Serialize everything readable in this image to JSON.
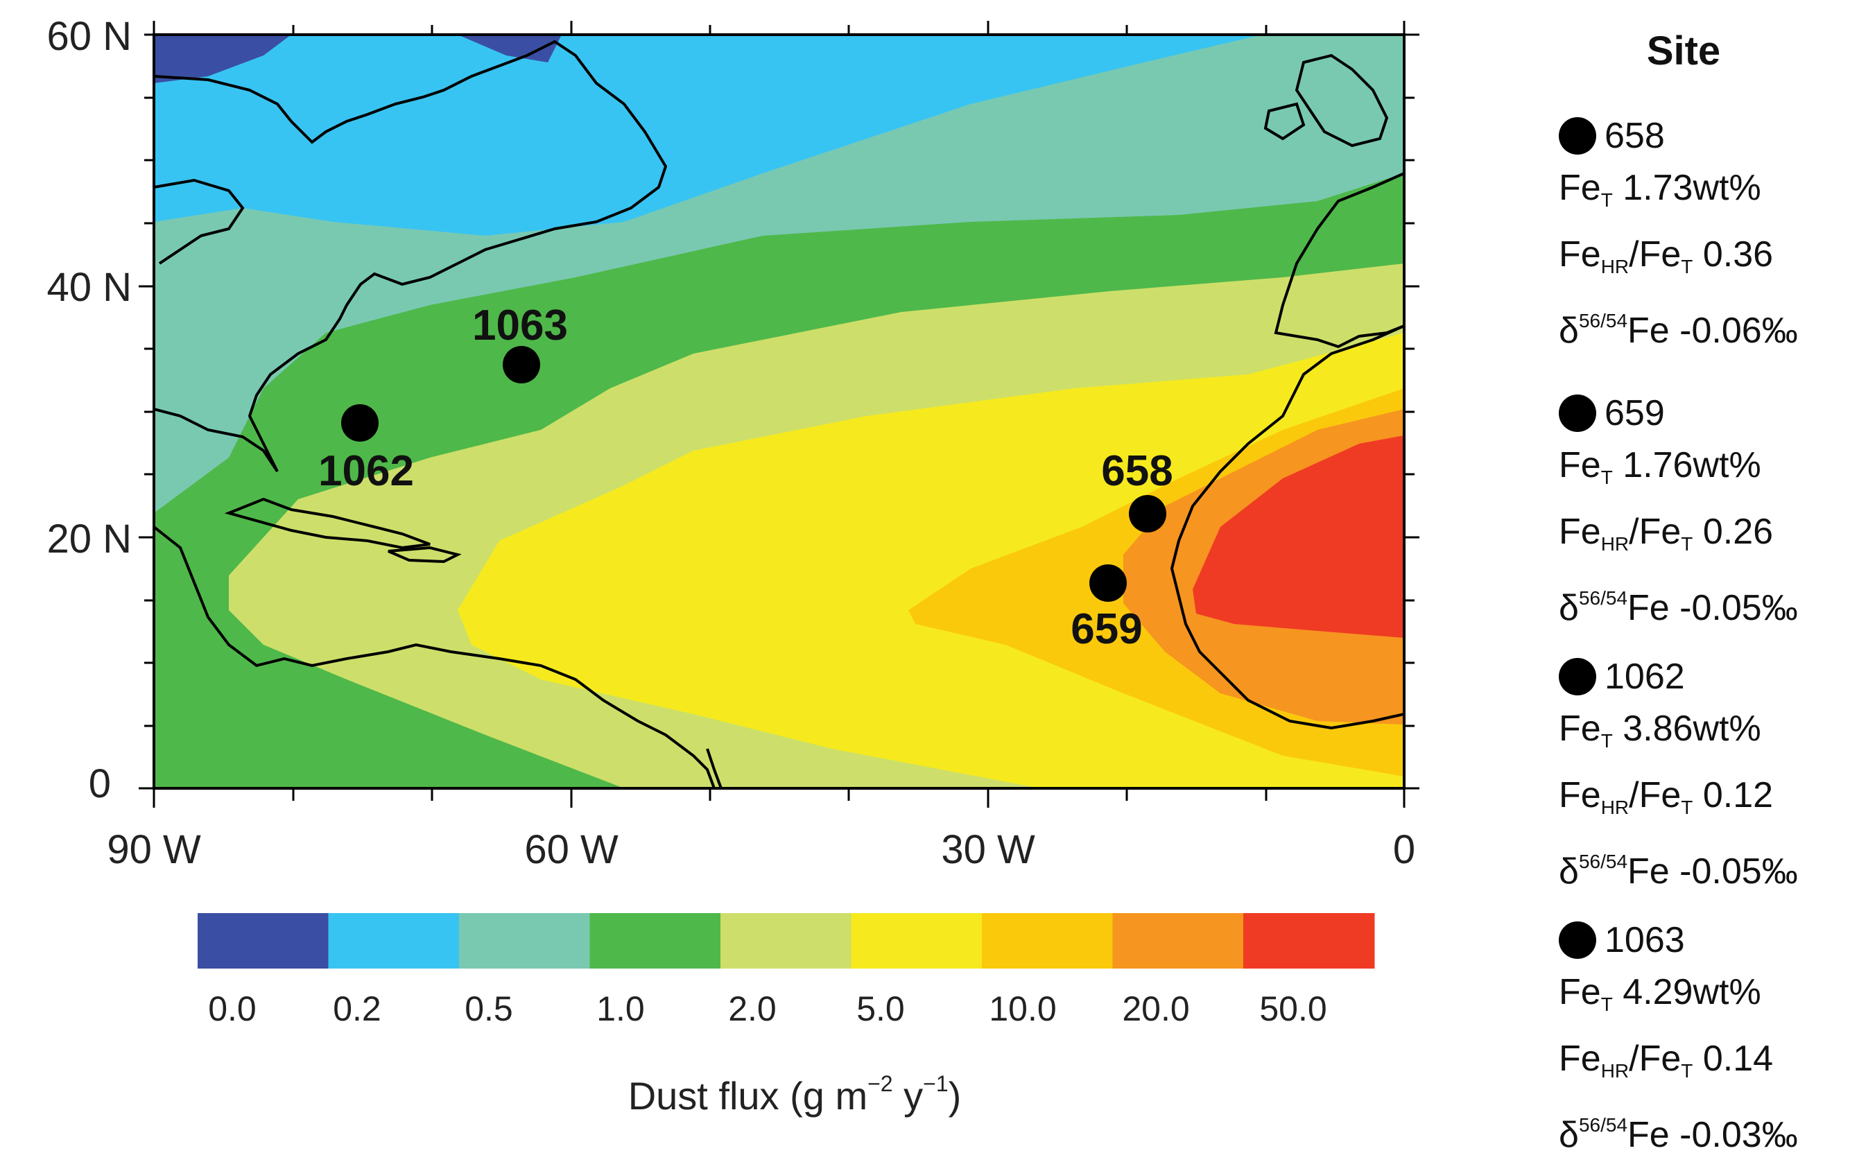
{
  "map": {
    "y_axis_labels": [
      "60 N",
      "40 N",
      "20 N",
      "0"
    ],
    "x_axis_labels": [
      "90 W",
      "60 W",
      "30 W",
      "0"
    ],
    "site_labels": [
      "1063",
      "1062",
      "658",
      "659"
    ]
  },
  "colorbar": {
    "colors": [
      "#3a4fa3",
      "#38c4f2",
      "#79c9b1",
      "#4fb84a",
      "#cddf6a",
      "#f6ea1e",
      "#fbc90c",
      "#f6951f",
      "#ef3b24"
    ],
    "tick_labels": [
      "0.0",
      "0.2",
      "0.5",
      "1.0",
      "2.0",
      "5.0",
      "10.0",
      "20.0",
      "50.0"
    ],
    "title": "Dust flux (g m",
    "title_exp1": "−2",
    "title_mid": " y",
    "title_exp2": "−1",
    "title_end": ")"
  },
  "legend": {
    "title": "Site",
    "sites": [
      {
        "id": "658",
        "fe_t": "1.73wt%",
        "ratio": "0.36",
        "delta": "-0.06‰"
      },
      {
        "id": "659",
        "fe_t": "1.76wt%",
        "ratio": "0.26",
        "delta": "-0.05‰"
      },
      {
        "id": "1062",
        "fe_t": "3.86wt%",
        "ratio": "0.12",
        "delta": "-0.05‰"
      },
      {
        "id": "1063",
        "fe_t": "4.29wt%",
        "ratio": "0.14",
        "delta": "-0.03‰"
      }
    ],
    "fe": "Fe",
    "sub_t": "T",
    "sub_hr": "HR",
    "slash": "/",
    "delta_sup": "56/54"
  }
}
